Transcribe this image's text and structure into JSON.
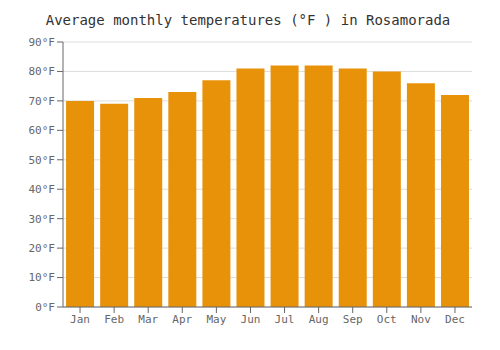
{
  "chart_data": {
    "type": "bar",
    "title": "Average monthly temperatures (°F ) in Rosamorada",
    "categories": [
      "Jan",
      "Feb",
      "Mar",
      "Apr",
      "May",
      "Jun",
      "Jul",
      "Aug",
      "Sep",
      "Oct",
      "Nov",
      "Dec"
    ],
    "values": [
      70,
      69,
      71,
      73,
      77,
      81,
      82,
      82,
      81,
      80,
      76,
      72
    ],
    "color": "#E8920A",
    "ylim": [
      0,
      90
    ],
    "yticks": [
      {
        "value": 0,
        "label": "0°F"
      },
      {
        "value": 10,
        "label": "10°F"
      },
      {
        "value": 20,
        "label": "20°F"
      },
      {
        "value": 30,
        "label": "30°F"
      },
      {
        "value": 40,
        "label": "40°F"
      },
      {
        "value": 50,
        "label": "50°F"
      },
      {
        "value": 60,
        "label": "60°F"
      },
      {
        "value": 70,
        "label": "70°F"
      },
      {
        "value": 80,
        "label": "80°F"
      },
      {
        "value": 90,
        "label": "90°F"
      }
    ],
    "grid": true
  }
}
